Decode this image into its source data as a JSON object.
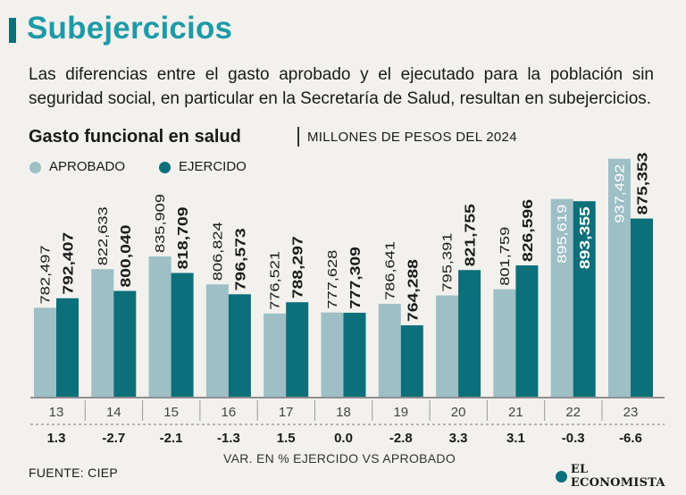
{
  "header": {
    "title": "Subejercicios",
    "subtitle": "Las diferencias entre el gasto aprobado y el ejecutado para la población sin seguridad social, en particular en la Secretaría de Salud, resultan en subejercicios."
  },
  "chart_header": {
    "title": "Gasto funcional en salud",
    "units": "MILLONES DE PESOS DEL 2024"
  },
  "footer": {
    "source": "FUENTE: CIEP",
    "brand": "EL ECONOMISTA"
  },
  "colors": {
    "approved": "#9dbfc5",
    "executed": "#0c6f7a",
    "title": "#1e9aa6",
    "text": "#1a1a1a"
  },
  "chart_data": {
    "type": "bar",
    "title": "Gasto funcional en salud",
    "ylabel": "Millones de pesos del 2024",
    "xlabel": "",
    "categories": [
      "13",
      "14",
      "15",
      "16",
      "17",
      "18",
      "19",
      "20",
      "21",
      "22",
      "23"
    ],
    "series": [
      {
        "name": "APROBADO",
        "values": [
          782497,
          822633,
          835909,
          806824,
          776521,
          777628,
          786641,
          795391,
          801759,
          895619,
          937492
        ],
        "labels": [
          "782,497",
          "822,633",
          "835,909",
          "806,824",
          "776,521",
          "777,628",
          "786,641",
          "795,391",
          "801,759",
          "895,619",
          "937,492"
        ]
      },
      {
        "name": "EJERCIDO",
        "values": [
          792407,
          800040,
          818709,
          796573,
          788297,
          777309,
          764288,
          821755,
          826596,
          893355,
          875353
        ],
        "labels": [
          "792,407",
          "800,040",
          "818,709",
          "796,573",
          "788,297",
          "777,309",
          "764,288",
          "821,755",
          "826,596",
          "893,355",
          "875,353"
        ]
      }
    ],
    "variation": {
      "label": "VAR. EN %  EJERCIDO VS APROBADO",
      "values": [
        "1.3",
        "-2.7",
        "-2.1",
        "-1.3",
        "1.5",
        "0.0",
        "-2.8",
        "3.3",
        "3.1",
        "-0.3",
        "-6.6"
      ]
    },
    "ylim": [
      690000,
      940000
    ],
    "grid": false,
    "legend": "top-left"
  }
}
